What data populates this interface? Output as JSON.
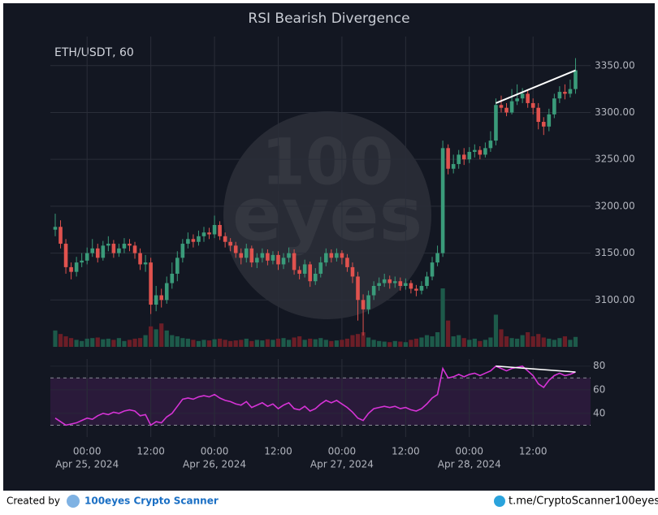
{
  "chart_data": {
    "type": "candlestick",
    "title": "RSI Bearish Divergence",
    "symbol_label": "ETH/USDT, 60",
    "watermark": {
      "top": "100",
      "bottom": "eyes"
    },
    "x": [
      "2024-04-24T18:00",
      "2024-04-24T19:00",
      "2024-04-24T20:00",
      "2024-04-24T21:00",
      "2024-04-24T22:00",
      "2024-04-24T23:00",
      "2024-04-25T00:00",
      "2024-04-25T01:00",
      "2024-04-25T02:00",
      "2024-04-25T03:00",
      "2024-04-25T04:00",
      "2024-04-25T05:00",
      "2024-04-25T06:00",
      "2024-04-25T07:00",
      "2024-04-25T08:00",
      "2024-04-25T09:00",
      "2024-04-25T10:00",
      "2024-04-25T11:00",
      "2024-04-25T12:00",
      "2024-04-25T13:00",
      "2024-04-25T14:00",
      "2024-04-25T15:00",
      "2024-04-25T16:00",
      "2024-04-25T17:00",
      "2024-04-25T18:00",
      "2024-04-25T19:00",
      "2024-04-25T20:00",
      "2024-04-25T21:00",
      "2024-04-25T22:00",
      "2024-04-25T23:00",
      "2024-04-26T00:00",
      "2024-04-26T01:00",
      "2024-04-26T02:00",
      "2024-04-26T03:00",
      "2024-04-26T04:00",
      "2024-04-26T05:00",
      "2024-04-26T06:00",
      "2024-04-26T07:00",
      "2024-04-26T08:00",
      "2024-04-26T09:00",
      "2024-04-26T10:00",
      "2024-04-26T11:00",
      "2024-04-26T12:00",
      "2024-04-26T13:00",
      "2024-04-26T14:00",
      "2024-04-26T15:00",
      "2024-04-26T16:00",
      "2024-04-26T17:00",
      "2024-04-26T18:00",
      "2024-04-26T19:00",
      "2024-04-26T20:00",
      "2024-04-26T21:00",
      "2024-04-26T22:00",
      "2024-04-26T23:00",
      "2024-04-27T00:00",
      "2024-04-27T01:00",
      "2024-04-27T02:00",
      "2024-04-27T03:00",
      "2024-04-27T04:00",
      "2024-04-27T05:00",
      "2024-04-27T06:00",
      "2024-04-27T07:00",
      "2024-04-27T08:00",
      "2024-04-27T09:00",
      "2024-04-27T10:00",
      "2024-04-27T11:00",
      "2024-04-27T12:00",
      "2024-04-27T13:00",
      "2024-04-27T14:00",
      "2024-04-27T15:00",
      "2024-04-27T16:00",
      "2024-04-27T17:00",
      "2024-04-27T18:00",
      "2024-04-27T19:00",
      "2024-04-27T20:00",
      "2024-04-27T21:00",
      "2024-04-27T22:00",
      "2024-04-27T23:00",
      "2024-04-28T00:00",
      "2024-04-28T01:00",
      "2024-04-28T02:00",
      "2024-04-28T03:00",
      "2024-04-28T04:00",
      "2024-04-28T05:00",
      "2024-04-28T06:00",
      "2024-04-28T07:00",
      "2024-04-28T08:00",
      "2024-04-28T09:00",
      "2024-04-28T10:00",
      "2024-04-28T11:00",
      "2024-04-28T12:00",
      "2024-04-28T13:00",
      "2024-04-28T14:00",
      "2024-04-28T15:00",
      "2024-04-28T16:00",
      "2024-04-28T17:00",
      "2024-04-28T18:00",
      "2024-04-28T19:00",
      "2024-04-28T20:00"
    ],
    "open": [
      3175,
      3178,
      3160,
      3135,
      3130,
      3140,
      3142,
      3150,
      3155,
      3145,
      3158,
      3160,
      3150,
      3155,
      3160,
      3158,
      3150,
      3138,
      3140,
      3095,
      3105,
      3100,
      3118,
      3128,
      3145,
      3160,
      3165,
      3162,
      3168,
      3172,
      3170,
      3180,
      3168,
      3162,
      3158,
      3150,
      3145,
      3155,
      3140,
      3145,
      3150,
      3142,
      3148,
      3138,
      3145,
      3150,
      3132,
      3128,
      3138,
      3120,
      3128,
      3140,
      3150,
      3145,
      3150,
      3145,
      3135,
      3125,
      3100,
      3090,
      3105,
      3115,
      3118,
      3122,
      3118,
      3120,
      3115,
      3118,
      3112,
      3110,
      3115,
      3125,
      3140,
      3150,
      3262,
      3240,
      3245,
      3255,
      3250,
      3258,
      3260,
      3255,
      3262,
      3270,
      3308,
      3305,
      3300,
      3312,
      3315,
      3320,
      3310,
      3305,
      3290,
      3285,
      3298,
      3315,
      3322,
      3320,
      3325
    ],
    "high": [
      3192,
      3185,
      3165,
      3140,
      3146,
      3150,
      3156,
      3165,
      3160,
      3163,
      3168,
      3164,
      3160,
      3166,
      3165,
      3162,
      3155,
      3148,
      3145,
      3115,
      3112,
      3125,
      3140,
      3152,
      3165,
      3172,
      3170,
      3174,
      3178,
      3177,
      3190,
      3184,
      3172,
      3166,
      3162,
      3155,
      3160,
      3158,
      3150,
      3155,
      3154,
      3152,
      3152,
      3150,
      3156,
      3154,
      3136,
      3143,
      3141,
      3134,
      3146,
      3155,
      3154,
      3155,
      3153,
      3149,
      3140,
      3130,
      3106,
      3110,
      3120,
      3124,
      3128,
      3126,
      3125,
      3124,
      3123,
      3121,
      3116,
      3120,
      3130,
      3146,
      3158,
      3270,
      3266,
      3255,
      3260,
      3262,
      3263,
      3266,
      3264,
      3268,
      3280,
      3315,
      3318,
      3310,
      3325,
      3330,
      3326,
      3324,
      3315,
      3310,
      3295,
      3304,
      3320,
      3328,
      3330,
      3335,
      3358
    ],
    "low": [
      3168,
      3155,
      3128,
      3122,
      3125,
      3135,
      3138,
      3146,
      3140,
      3142,
      3152,
      3145,
      3146,
      3150,
      3152,
      3144,
      3132,
      3130,
      3085,
      3088,
      3092,
      3096,
      3112,
      3120,
      3140,
      3155,
      3156,
      3158,
      3162,
      3165,
      3166,
      3164,
      3156,
      3152,
      3145,
      3138,
      3140,
      3135,
      3134,
      3140,
      3137,
      3138,
      3132,
      3133,
      3140,
      3127,
      3122,
      3124,
      3114,
      3116,
      3124,
      3136,
      3140,
      3141,
      3138,
      3130,
      3118,
      3078,
      3062,
      3085,
      3100,
      3110,
      3114,
      3112,
      3113,
      3110,
      3111,
      3107,
      3104,
      3106,
      3112,
      3121,
      3136,
      3146,
      3234,
      3235,
      3240,
      3244,
      3246,
      3252,
      3250,
      3252,
      3258,
      3265,
      3300,
      3296,
      3298,
      3308,
      3310,
      3305,
      3298,
      3282,
      3276,
      3280,
      3294,
      3310,
      3314,
      3316,
      3320
    ],
    "close": [
      3178,
      3160,
      3135,
      3130,
      3140,
      3142,
      3150,
      3155,
      3145,
      3158,
      3160,
      3150,
      3155,
      3160,
      3158,
      3150,
      3138,
      3140,
      3095,
      3105,
      3100,
      3118,
      3128,
      3145,
      3160,
      3165,
      3162,
      3168,
      3172,
      3170,
      3180,
      3168,
      3162,
      3158,
      3150,
      3145,
      3155,
      3140,
      3145,
      3150,
      3142,
      3148,
      3138,
      3145,
      3150,
      3132,
      3128,
      3138,
      3120,
      3128,
      3140,
      3150,
      3145,
      3150,
      3145,
      3135,
      3125,
      3100,
      3090,
      3105,
      3115,
      3118,
      3122,
      3118,
      3120,
      3115,
      3118,
      3112,
      3110,
      3115,
      3125,
      3140,
      3150,
      3262,
      3240,
      3245,
      3255,
      3250,
      3258,
      3260,
      3255,
      3262,
      3270,
      3308,
      3305,
      3300,
      3312,
      3315,
      3320,
      3310,
      3305,
      3290,
      3285,
      3298,
      3315,
      3322,
      3320,
      3325,
      3345
    ],
    "volume": [
      28,
      22,
      18,
      15,
      12,
      10,
      14,
      15,
      16,
      13,
      14,
      12,
      15,
      10,
      12,
      14,
      15,
      20,
      35,
      30,
      40,
      28,
      20,
      18,
      15,
      14,
      12,
      10,
      12,
      11,
      13,
      14,
      12,
      10,
      11,
      12,
      14,
      10,
      12,
      11,
      13,
      12,
      14,
      15,
      12,
      16,
      18,
      12,
      14,
      13,
      15,
      12,
      10,
      11,
      12,
      14,
      20,
      22,
      25,
      16,
      12,
      10,
      9,
      8,
      10,
      9,
      8,
      12,
      14,
      16,
      20,
      18,
      25,
      100,
      45,
      18,
      20,
      15,
      12,
      14,
      10,
      12,
      16,
      55,
      30,
      18,
      15,
      14,
      20,
      25,
      18,
      22,
      16,
      14,
      12,
      15,
      18,
      12,
      17
    ],
    "rsi": [
      36,
      33,
      30,
      31,
      32,
      34,
      36,
      35,
      38,
      40,
      39,
      41,
      40,
      42,
      43,
      42,
      38,
      39,
      30,
      33,
      32,
      37,
      40,
      46,
      52,
      53,
      52,
      54,
      55,
      54,
      56,
      53,
      51,
      50,
      48,
      47,
      50,
      45,
      47,
      49,
      46,
      48,
      44,
      47,
      49,
      44,
      43,
      46,
      42,
      44,
      48,
      51,
      49,
      51,
      48,
      45,
      41,
      36,
      34,
      40,
      44,
      45,
      46,
      45,
      46,
      44,
      45,
      43,
      42,
      44,
      48,
      53,
      56,
      78,
      70,
      71,
      73,
      71,
      73,
      74,
      72,
      74,
      76,
      80,
      78,
      76,
      78,
      79,
      80,
      76,
      72,
      65,
      62,
      68,
      72,
      74,
      72,
      73,
      75
    ],
    "up_color": "#3a9b7a",
    "down_color": "#e0524e",
    "volume_up_color": "#1d5a4a",
    "volume_down_color": "#6b1e27",
    "rsi_color": "#d633d6",
    "rsi_band_color": "#2a1a3a",
    "xlim": [
      "2024-04-24T17:05",
      "2024-04-28T22:50"
    ],
    "xticks": [
      {
        "value": "2024-04-25T00:00",
        "label": "00:00"
      },
      {
        "value": "2024-04-25T12:00",
        "label": "12:00"
      },
      {
        "value": "2024-04-26T00:00",
        "label": "00:00"
      },
      {
        "value": "2024-04-26T12:00",
        "label": "12:00"
      },
      {
        "value": "2024-04-27T00:00",
        "label": "00:00"
      },
      {
        "value": "2024-04-27T12:00",
        "label": "12:00"
      },
      {
        "value": "2024-04-28T00:00",
        "label": "00:00"
      },
      {
        "value": "2024-04-28T12:00",
        "label": "12:00"
      }
    ],
    "xdate_ticks": [
      {
        "value": "2024-04-25T00:00",
        "label": "Apr 25, 2024"
      },
      {
        "value": "2024-04-26T00:00",
        "label": "Apr 26, 2024"
      },
      {
        "value": "2024-04-27T00:00",
        "label": "Apr 27, 2024"
      },
      {
        "value": "2024-04-28T00:00",
        "label": "Apr 28, 2024"
      }
    ],
    "ylim": [
      3050,
      3381
    ],
    "yticks": [
      {
        "value": 3100,
        "label": "3100.00"
      },
      {
        "value": 3150,
        "label": "3150.00"
      },
      {
        "value": 3200,
        "label": "3200.00"
      },
      {
        "value": 3250,
        "label": "3250.00"
      },
      {
        "value": 3300,
        "label": "3300.00"
      },
      {
        "value": 3350,
        "label": "3350.00"
      }
    ],
    "rsi_ylim": [
      20,
      86
    ],
    "rsi_yticks": [
      40,
      60,
      80
    ],
    "rsi_bands": [
      30,
      70
    ],
    "grid": true,
    "divergence": {
      "x": [
        "2024-04-28T05:00",
        "2024-04-28T20:00"
      ],
      "price": [
        3310,
        3345
      ],
      "rsi": [
        80,
        75
      ],
      "color": "#ffffff"
    }
  },
  "footer": {
    "created_by": "Created by",
    "brand": "100eyes Crypto Scanner",
    "link": "t.me/CryptoScanner100eyes"
  }
}
